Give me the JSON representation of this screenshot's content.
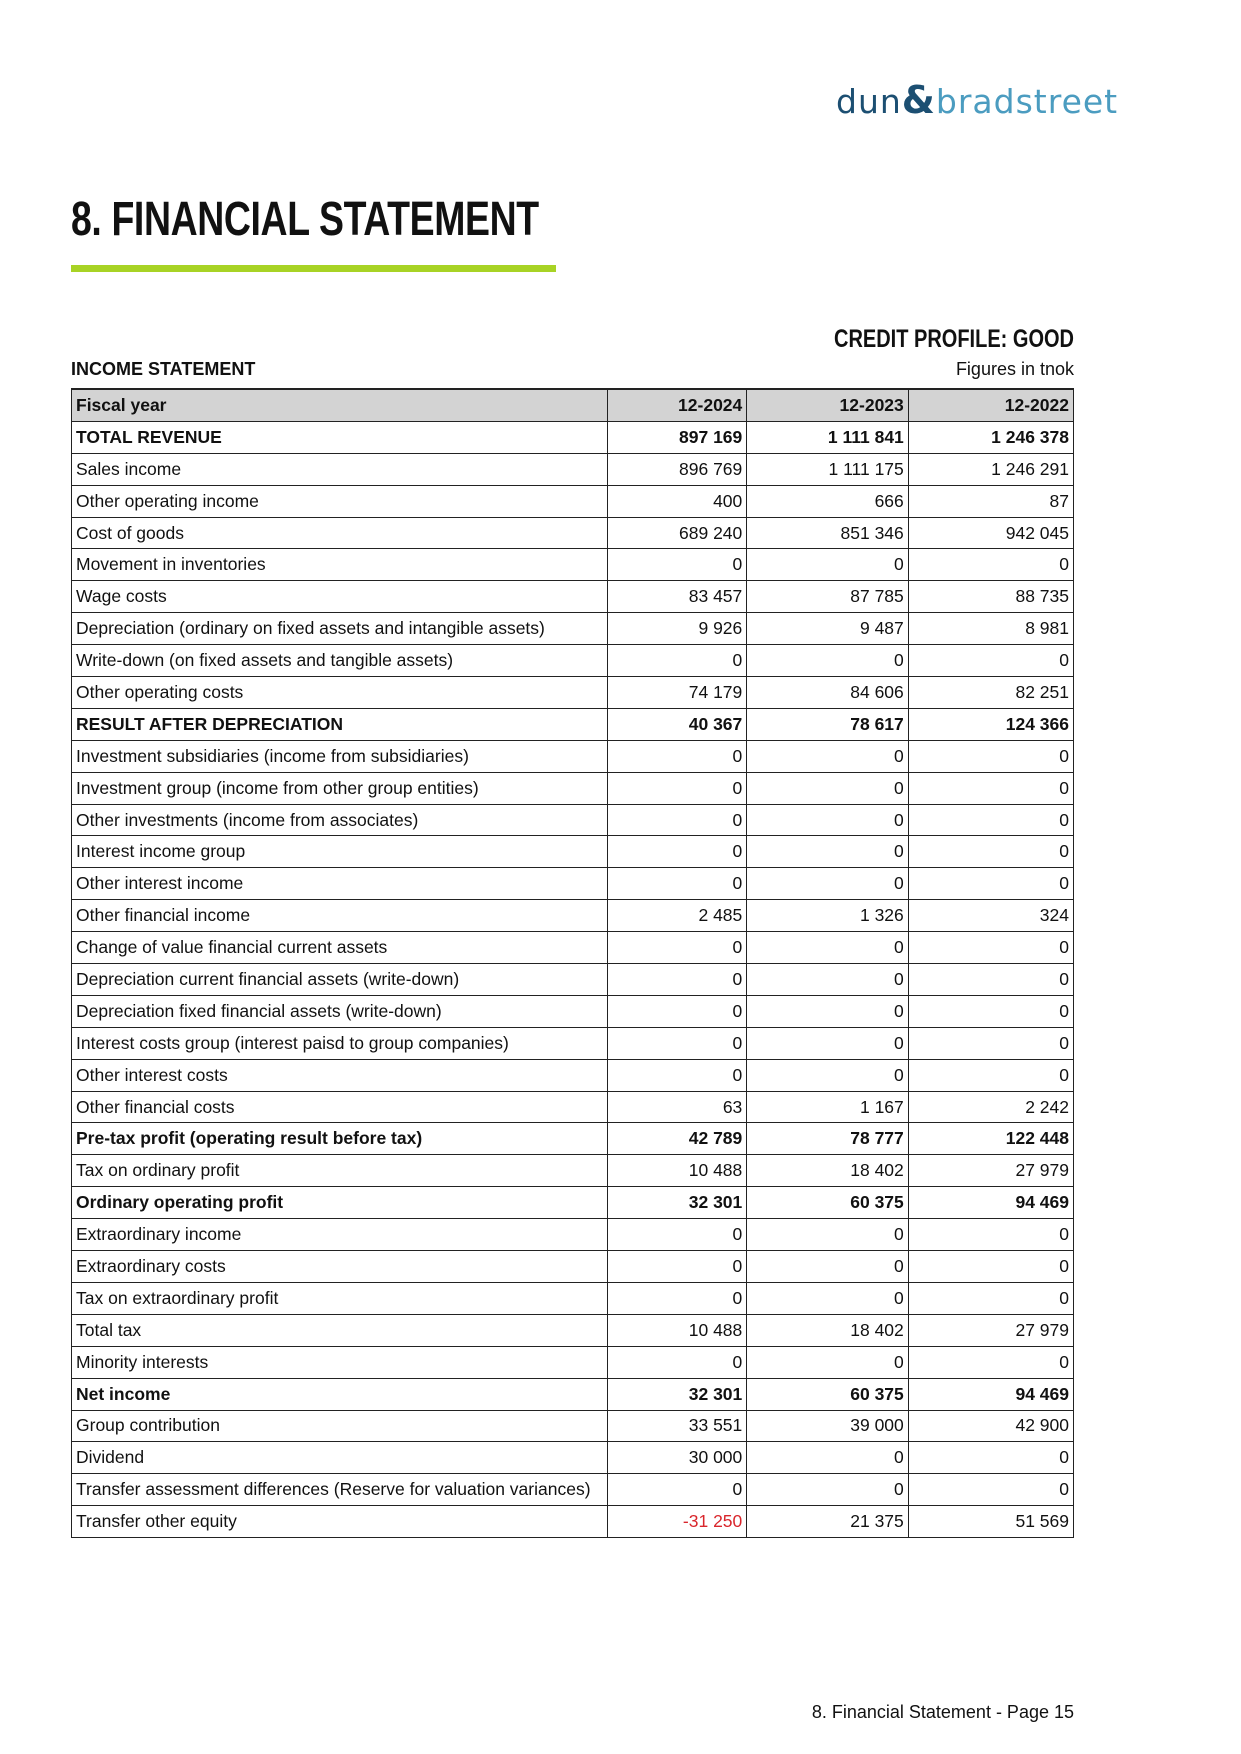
{
  "logo": {
    "text": "dun & bradstreet",
    "part1": "dun",
    "amp": "&",
    "part2": "bradstreet",
    "colors": {
      "dark": "#1c4f72",
      "light": "#4b9cc0"
    }
  },
  "title": "8. FINANCIAL STATEMENT",
  "accent_color": "#a8d325",
  "credit_profile": "CREDIT PROFILE: GOOD",
  "section_label": "INCOME STATEMENT",
  "units": "Figures in tnok",
  "table": {
    "headers": [
      "Fiscal year",
      "12-2024",
      "12-2023",
      "12-2022"
    ],
    "rows": [
      {
        "label": "TOTAL REVENUE",
        "values": [
          "897 169",
          "1 111 841",
          "1 246 378"
        ],
        "bold": true
      },
      {
        "label": "Sales income",
        "values": [
          "896 769",
          "1 111 175",
          "1 246 291"
        ]
      },
      {
        "label": "Other operating income",
        "values": [
          "400",
          "666",
          "87"
        ]
      },
      {
        "label": "Cost of goods",
        "values": [
          "689 240",
          "851 346",
          "942 045"
        ]
      },
      {
        "label": "Movement in inventories",
        "values": [
          "0",
          "0",
          "0"
        ]
      },
      {
        "label": "Wage costs",
        "values": [
          "83 457",
          "87 785",
          "88 735"
        ]
      },
      {
        "label": "Depreciation (ordinary on fixed assets and intangible assets)",
        "values": [
          "9 926",
          "9 487",
          "8 981"
        ]
      },
      {
        "label": "Write-down (on fixed assets and tangible assets)",
        "values": [
          "0",
          "0",
          "0"
        ]
      },
      {
        "label": "Other operating costs",
        "values": [
          "74 179",
          "84 606",
          "82 251"
        ]
      },
      {
        "label": "RESULT AFTER DEPRECIATION",
        "values": [
          "40 367",
          "78 617",
          "124 366"
        ],
        "bold": true
      },
      {
        "label": "Investment subsidiaries (income from subsidiaries)",
        "values": [
          "0",
          "0",
          "0"
        ]
      },
      {
        "label": "Investment group (income from other group entities)",
        "values": [
          "0",
          "0",
          "0"
        ]
      },
      {
        "label": "Other investments (income from associates)",
        "values": [
          "0",
          "0",
          "0"
        ]
      },
      {
        "label": "Interest income group",
        "values": [
          "0",
          "0",
          "0"
        ]
      },
      {
        "label": "Other interest income",
        "values": [
          "0",
          "0",
          "0"
        ]
      },
      {
        "label": "Other financial income",
        "values": [
          "2 485",
          "1 326",
          "324"
        ]
      },
      {
        "label": "Change of value financial current assets",
        "values": [
          "0",
          "0",
          "0"
        ]
      },
      {
        "label": "Depreciation current financial assets (write-down)",
        "values": [
          "0",
          "0",
          "0"
        ]
      },
      {
        "label": "Depreciation fixed financial assets (write-down)",
        "values": [
          "0",
          "0",
          "0"
        ]
      },
      {
        "label": "Interest costs group (interest paisd to group companies)",
        "values": [
          "0",
          "0",
          "0"
        ]
      },
      {
        "label": "Other interest costs",
        "values": [
          "0",
          "0",
          "0"
        ]
      },
      {
        "label": "Other financial costs",
        "values": [
          "63",
          "1 167",
          "2 242"
        ]
      },
      {
        "label": "Pre-tax profit (operating result before tax)",
        "values": [
          "42 789",
          "78 777",
          "122 448"
        ],
        "bold": true
      },
      {
        "label": "Tax on ordinary profit",
        "values": [
          "10 488",
          "18 402",
          "27 979"
        ]
      },
      {
        "label": "Ordinary operating profit",
        "values": [
          "32 301",
          "60 375",
          "94 469"
        ],
        "bold": true
      },
      {
        "label": "Extraordinary income",
        "values": [
          "0",
          "0",
          "0"
        ]
      },
      {
        "label": "Extraordinary costs",
        "values": [
          "0",
          "0",
          "0"
        ]
      },
      {
        "label": "Tax on extraordinary profit",
        "values": [
          "0",
          "0",
          "0"
        ]
      },
      {
        "label": "Total tax",
        "values": [
          "10 488",
          "18 402",
          "27 979"
        ]
      },
      {
        "label": "Minority interests",
        "values": [
          "0",
          "0",
          "0"
        ]
      },
      {
        "label": "Net income",
        "values": [
          "32 301",
          "60 375",
          "94 469"
        ],
        "bold": true
      },
      {
        "label": "Group contribution",
        "values": [
          "33 551",
          "39 000",
          "42 900"
        ]
      },
      {
        "label": "Dividend",
        "values": [
          "30 000",
          "0",
          "0"
        ]
      },
      {
        "label": "Transfer assessment differences (Reserve for valuation variances)",
        "values": [
          "0",
          "0",
          "0"
        ]
      },
      {
        "label": "Transfer other equity",
        "values": [
          "-31 250",
          "21 375",
          "51 569"
        ]
      }
    ],
    "negative_color": "#d9262c"
  },
  "footer": "8. Financial Statement - Page 15"
}
